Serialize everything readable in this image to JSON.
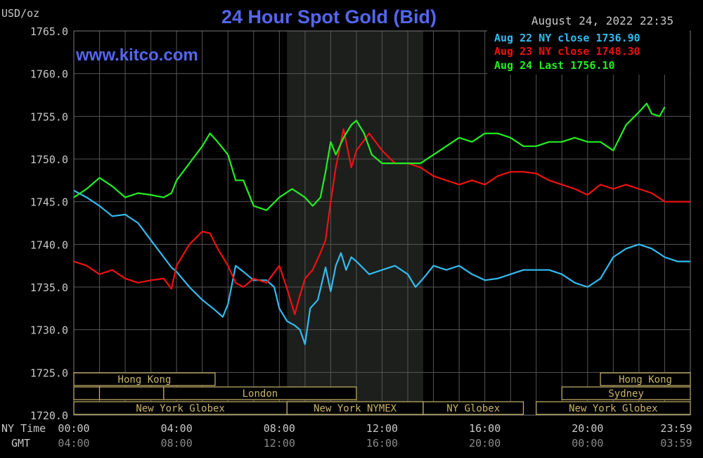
{
  "header": {
    "title": "24 Hour Spot Gold (Bid)",
    "unit": "USD/oz",
    "timestamp": "August 24, 2022 22:35",
    "watermark": "www.kitco.com"
  },
  "legend": [
    {
      "label": "Aug 22 NY close 1736.90",
      "color": "#33bbee"
    },
    {
      "label": "Aug 23 NY close 1748.30",
      "color": "#ee1111"
    },
    {
      "label": "Aug 24 Last 1756.10",
      "color": "#22ee22"
    }
  ],
  "colors": {
    "background": "#000000",
    "grid": "#555555",
    "title": "#5566ee",
    "session_box": "#c8b46a",
    "nymex_shade": "#1c1f1c",
    "axis_text": "#c8c8c8"
  },
  "chart_data": {
    "type": "line",
    "title": "24 Hour Spot Gold (Bid)",
    "ylabel": "USD/oz",
    "ylim": [
      1720,
      1765
    ],
    "yticks": [
      "1765.0",
      "1760.0",
      "1755.0",
      "1750.0",
      "1745.0",
      "1740.0",
      "1735.0",
      "1730.0",
      "1725.0",
      "1720.0"
    ],
    "xlim": [
      0,
      24
    ],
    "x_ticks_ny": [
      "00:00",
      "04:00",
      "08:00",
      "12:00",
      "16:00",
      "20:00",
      "23:59"
    ],
    "x_ticks_gmt": [
      "04:00",
      "08:00",
      "12:00",
      "16:00",
      "20:00",
      "00:00",
      "03:59"
    ],
    "x_axis_labels": {
      "ny": "NY Time",
      "gmt": "GMT"
    },
    "legend_position": "top-right",
    "grid": true,
    "shaded_region": {
      "x_start": 8.3,
      "x_end": 13.6
    },
    "sessions": [
      {
        "name": "Hong Kong",
        "start": 0,
        "end": 5.5,
        "row": 1
      },
      {
        "name": "Hong Kong",
        "start": 20.5,
        "end": 24,
        "row": 1
      },
      {
        "name": "",
        "start": 0,
        "end": 1,
        "row": 2
      },
      {
        "name": "",
        "start": 1,
        "end": 3.5,
        "row": 2
      },
      {
        "name": "London",
        "start": 3.5,
        "end": 11,
        "row": 2
      },
      {
        "name": "Sydney",
        "start": 19,
        "end": 24,
        "row": 2
      },
      {
        "name": "New York Globex",
        "start": 0,
        "end": 8.3,
        "row": 3
      },
      {
        "name": "New York NYMEX",
        "start": 8.3,
        "end": 13.6,
        "row": 3
      },
      {
        "name": "NY Globex",
        "start": 13.6,
        "end": 17.5,
        "row": 3
      },
      {
        "name": "New York Globex",
        "start": 18,
        "end": 24,
        "row": 3
      }
    ],
    "series": [
      {
        "name": "Aug 22 NY close 1736.90",
        "color": "#33bbee",
        "x": [
          0,
          0.5,
          1,
          1.5,
          2,
          2.5,
          3,
          3.5,
          3.8,
          4,
          4.5,
          5,
          5.5,
          5.8,
          6,
          6.3,
          6.6,
          7,
          7.5,
          7.8,
          8,
          8.3,
          8.6,
          8.8,
          9,
          9.2,
          9.5,
          9.8,
          10,
          10.2,
          10.4,
          10.6,
          10.8,
          11,
          11.5,
          12,
          12.5,
          13,
          13.3,
          13.6,
          14,
          14.5,
          15,
          15.5,
          16,
          16.5,
          17,
          17.5,
          18,
          18.5,
          19,
          19.5,
          20,
          20.5,
          21,
          21.5,
          22,
          22.5,
          23,
          23.5,
          24
        ],
        "values": [
          1746.3,
          1745.5,
          1744.5,
          1743.3,
          1743.5,
          1742.5,
          1740.5,
          1738.5,
          1737.3,
          1736.8,
          1735.0,
          1733.5,
          1732.3,
          1731.5,
          1733.0,
          1737.5,
          1736.8,
          1735.8,
          1735.8,
          1735.0,
          1732.5,
          1731.0,
          1730.5,
          1730.0,
          1728.3,
          1732.5,
          1733.5,
          1737.3,
          1734.5,
          1737.5,
          1739.0,
          1737.0,
          1738.5,
          1738.0,
          1736.5,
          1737.0,
          1737.5,
          1736.5,
          1735.0,
          1736.0,
          1737.5,
          1737.0,
          1737.5,
          1736.5,
          1735.8,
          1736.0,
          1736.5,
          1737.0,
          1737.0,
          1737.0,
          1736.5,
          1735.5,
          1735.0,
          1736.0,
          1738.5,
          1739.5,
          1740.0,
          1739.5,
          1738.5,
          1738.0,
          1738.0
        ]
      },
      {
        "name": "Aug 23 NY close 1748.30",
        "color": "#ee1111",
        "x": [
          0,
          0.5,
          1,
          1.5,
          2,
          2.5,
          3,
          3.5,
          3.8,
          4,
          4.5,
          5,
          5.3,
          5.6,
          6,
          6.3,
          6.6,
          7,
          7.5,
          8,
          8.3,
          8.6,
          8.8,
          9,
          9.3,
          9.6,
          9.8,
          10,
          10.2,
          10.5,
          10.8,
          11,
          11.5,
          12,
          12.5,
          13,
          13.5,
          14,
          14.5,
          15,
          15.5,
          16,
          16.5,
          17,
          17.5,
          18,
          18.5,
          19,
          19.5,
          20,
          20.5,
          21,
          21.5,
          22,
          22.5,
          23,
          23.5,
          24
        ],
        "values": [
          1738.0,
          1737.5,
          1736.5,
          1737.0,
          1736.0,
          1735.5,
          1735.8,
          1736.0,
          1734.8,
          1737.5,
          1740.0,
          1741.5,
          1741.3,
          1739.5,
          1737.5,
          1735.5,
          1735.0,
          1736.0,
          1735.5,
          1737.5,
          1734.8,
          1731.8,
          1734.0,
          1736.0,
          1737.0,
          1739.0,
          1740.5,
          1745.0,
          1749.0,
          1753.5,
          1749.0,
          1751.0,
          1753.0,
          1751.0,
          1749.5,
          1749.5,
          1749.0,
          1748.0,
          1747.5,
          1747.0,
          1747.5,
          1747.0,
          1748.0,
          1748.5,
          1748.5,
          1748.3,
          1747.5,
          1747.0,
          1746.5,
          1745.8,
          1747.0,
          1746.5,
          1747.0,
          1746.5,
          1746.0,
          1745.0,
          1745.0,
          1745.0
        ]
      },
      {
        "name": "Aug 24 Last 1756.10",
        "color": "#22ee22",
        "x": [
          0,
          0.5,
          1,
          1.5,
          2,
          2.5,
          3,
          3.5,
          3.8,
          4,
          4.5,
          5,
          5.3,
          5.6,
          6,
          6.3,
          6.6,
          7,
          7.5,
          8,
          8.5,
          9,
          9.3,
          9.6,
          9.8,
          10,
          10.2,
          10.5,
          10.8,
          11,
          11.3,
          11.6,
          12,
          12.5,
          13,
          13.5,
          14,
          14.5,
          15,
          15.5,
          16,
          16.5,
          17,
          17.5,
          18,
          18.5,
          19,
          19.5,
          20,
          20.5,
          21,
          21.5,
          22,
          22.3,
          22.5,
          22.8,
          23
        ],
        "values": [
          1745.5,
          1746.5,
          1747.8,
          1746.8,
          1745.5,
          1746.0,
          1745.8,
          1745.5,
          1746.0,
          1747.5,
          1749.5,
          1751.5,
          1753.0,
          1752.0,
          1750.5,
          1747.5,
          1747.5,
          1744.5,
          1744.0,
          1745.5,
          1746.5,
          1745.5,
          1744.5,
          1745.5,
          1748.5,
          1752.0,
          1750.5,
          1752.5,
          1754.0,
          1754.5,
          1753.0,
          1750.5,
          1749.5,
          1749.5,
          1749.5,
          1749.5,
          1750.5,
          1751.5,
          1752.5,
          1752.0,
          1753.0,
          1753.0,
          1752.5,
          1751.5,
          1751.5,
          1752.0,
          1752.0,
          1752.5,
          1752.0,
          1752.0,
          1751.0,
          1754.0,
          1755.5,
          1756.5,
          1755.3,
          1755.0,
          1756.1
        ]
      }
    ]
  }
}
